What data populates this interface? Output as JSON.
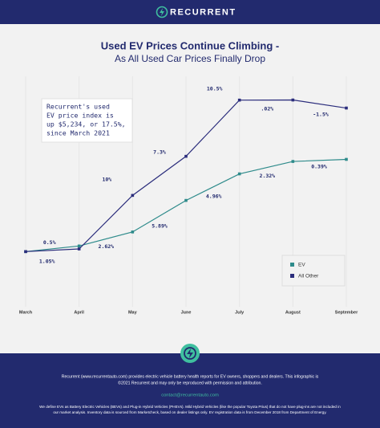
{
  "header": {
    "logo": "RECURRENT"
  },
  "chart_data": {
    "type": "line",
    "title": "Used EV Prices Continue Climbing -",
    "subtitle": "As All Used Car Prices Finally Drop",
    "categories": [
      "March",
      "April",
      "May",
      "June",
      "July",
      "August",
      "September"
    ],
    "series": [
      {
        "name": "EV",
        "color": "#2e8b8b",
        "values": [
          0,
          1.05,
          2.62,
          5.89,
          4.96,
          2.32,
          0.39
        ],
        "value_labels": [
          null,
          "1.05%",
          "2.62%",
          "5.89%",
          "4.96%",
          "2.32%",
          "0.39%"
        ]
      },
      {
        "name": "All Other",
        "color": "#2b2d7c",
        "values": [
          0,
          0.5,
          10,
          7.3,
          10.5,
          0.02,
          -1.5
        ],
        "value_labels": [
          null,
          "0.5%",
          "10%",
          "7.3%",
          "10.5%",
          ".02%",
          "-1.5%"
        ]
      }
    ],
    "ylim": [
      -10,
      32
    ],
    "grid": true,
    "legend": "bottom-right",
    "annotation": [
      "Recurrent's used",
      "EV price index is",
      "up $5,234, or 17.5%,",
      "since March 2021"
    ]
  },
  "footer": {
    "lines": [
      "Recurrent (www.recurrentauto.com) provides electric vehicle battery health reports for EV owners, shoppers and dealers. This infographic is",
      "©2021 Recurrent and may only be reproduced with permission and attribution."
    ],
    "contact": "contact@recurrentauto.com",
    "notes": [
      "We define EVs as Battery Electric Vehicles (BEVs) and Plug-in Hybrid Vehicles (PHEVs). Mild Hybrid Vehicles (like the popular Toyota Prius) that do not have plug-ins are not included in",
      "our market analysis. Inventory data is sourced from Marketcheck, based on dealer listings only. EV registration data is from December 2018 from Department of Energy."
    ]
  }
}
